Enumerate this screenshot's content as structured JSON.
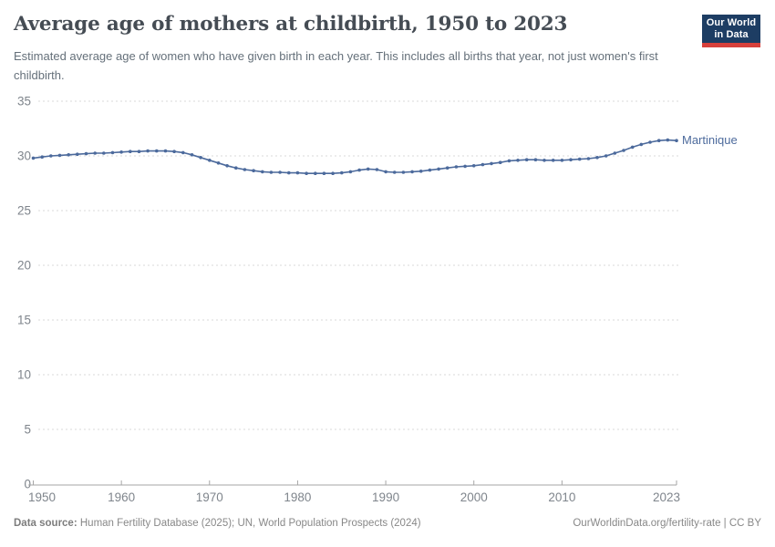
{
  "header": {
    "title": "Average age of mothers at childbirth, 1950 to 2023",
    "subtitle": "Estimated average age of women who have given birth in each year. This includes all births that year, not just women's first childbirth.",
    "logo": {
      "line1": "Our World",
      "line2": "in Data",
      "bg_color": "#1d3d63",
      "accent_color": "#d7403b"
    }
  },
  "chart_data": {
    "type": "line",
    "title": "Average age of mothers at childbirth, 1950 to 2023",
    "xlabel": "",
    "ylabel": "",
    "ylim": [
      0,
      35
    ],
    "yticks": [
      0,
      5,
      10,
      15,
      20,
      25,
      30,
      35
    ],
    "xticks": [
      1950,
      1960,
      1970,
      1980,
      1990,
      2000,
      2010,
      2023
    ],
    "grid": "horizontal-dashed",
    "legend_position": "end-of-line-label",
    "years": [
      1950,
      1951,
      1952,
      1953,
      1954,
      1955,
      1956,
      1957,
      1958,
      1959,
      1960,
      1961,
      1962,
      1963,
      1964,
      1965,
      1966,
      1967,
      1968,
      1969,
      1970,
      1971,
      1972,
      1973,
      1974,
      1975,
      1976,
      1977,
      1978,
      1979,
      1980,
      1981,
      1982,
      1983,
      1984,
      1985,
      1986,
      1987,
      1988,
      1989,
      1990,
      1991,
      1992,
      1993,
      1994,
      1995,
      1996,
      1997,
      1998,
      1999,
      2000,
      2001,
      2002,
      2003,
      2004,
      2005,
      2006,
      2007,
      2008,
      2009,
      2010,
      2011,
      2012,
      2013,
      2014,
      2015,
      2016,
      2017,
      2018,
      2019,
      2020,
      2021,
      2022,
      2023
    ],
    "series": [
      {
        "name": "Martinique",
        "color": "#4c6a9c",
        "values": [
          29.8,
          29.9,
          30.0,
          30.05,
          30.1,
          30.15,
          30.2,
          30.25,
          30.25,
          30.3,
          30.35,
          30.4,
          30.4,
          30.45,
          30.45,
          30.45,
          30.4,
          30.3,
          30.1,
          29.85,
          29.6,
          29.35,
          29.1,
          28.9,
          28.75,
          28.65,
          28.55,
          28.5,
          28.5,
          28.45,
          28.45,
          28.4,
          28.4,
          28.4,
          28.4,
          28.45,
          28.55,
          28.7,
          28.8,
          28.75,
          28.55,
          28.5,
          28.5,
          28.55,
          28.6,
          28.7,
          28.8,
          28.9,
          29.0,
          29.05,
          29.1,
          29.2,
          29.3,
          29.4,
          29.55,
          29.6,
          29.65,
          29.65,
          29.6,
          29.6,
          29.6,
          29.65,
          29.7,
          29.75,
          29.85,
          30.0,
          30.25,
          30.5,
          30.8,
          31.05,
          31.25,
          31.4,
          31.45,
          31.4
        ]
      }
    ]
  },
  "footer": {
    "datasource_label": "Data source:",
    "datasource_text": " Human Fertility Database (2025); UN, World Population Prospects (2024)",
    "link_text": "OurWorldinData.org/fertility-rate | CC BY"
  }
}
